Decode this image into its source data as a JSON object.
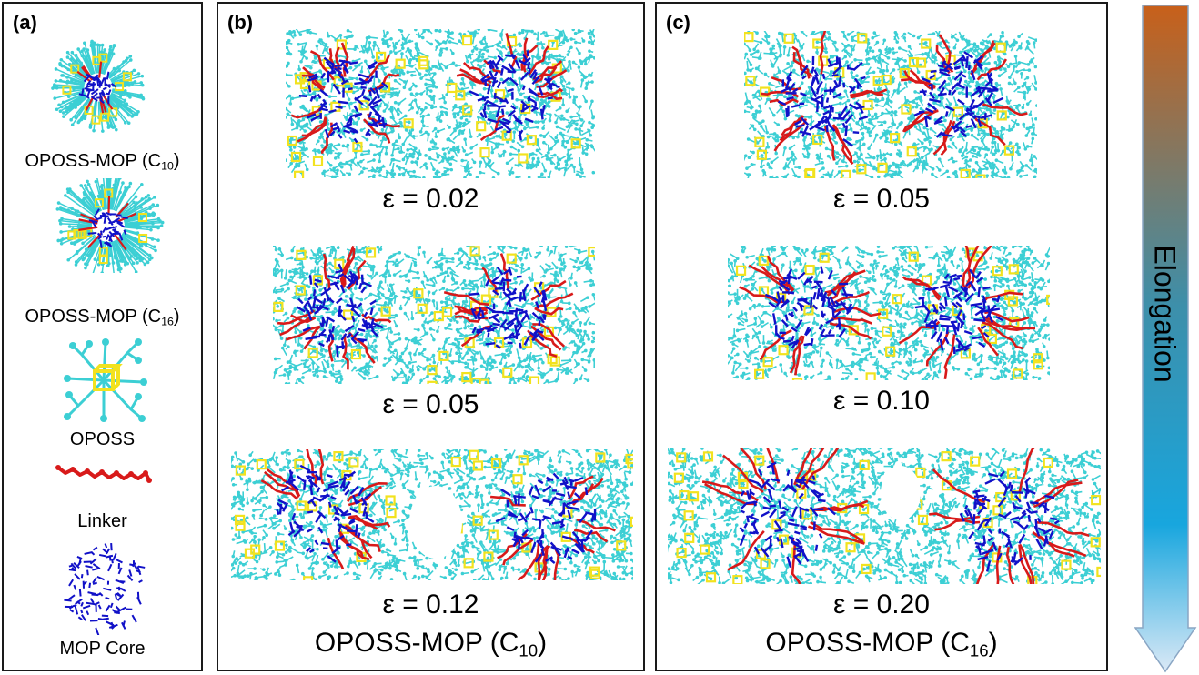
{
  "colors": {
    "oposs_arm": "#3ccfd4",
    "oposs_cage": "#f2e21e",
    "linker": "#d81a1a",
    "mop_core": "#1111c8",
    "arrow_top": "#c8601a",
    "arrow_mid": "#18a6de",
    "arrow_bottom": "#dbe9f6"
  },
  "panel_a": {
    "label": "(a)",
    "items": [
      {
        "text": "OPOSS-MOP (C",
        "sub": "10",
        "close": ")",
        "icon": "oposs-mop-c10-icon"
      },
      {
        "text": "OPOSS-MOP (C",
        "sub": "16",
        "close": ")",
        "icon": "oposs-mop-c16-icon"
      },
      {
        "text": "OPOSS",
        "icon": "oposs-molecule-icon"
      },
      {
        "text": "Linker",
        "icon": "linker-chain-icon"
      },
      {
        "text": "MOP Core",
        "icon": "mop-core-icon"
      }
    ]
  },
  "panel_b": {
    "label": "(b)",
    "strains": [
      "ε = 0.02",
      "ε = 0.05",
      "ε = 0.12"
    ],
    "title": {
      "text": "OPOSS-MOP (C",
      "sub": "10",
      "close": ")"
    }
  },
  "panel_c": {
    "label": "(c)",
    "strains": [
      "ε = 0.05",
      "ε = 0.10",
      "ε = 0.20"
    ],
    "title": {
      "text": "OPOSS-MOP (C",
      "sub": "16",
      "close": ")"
    }
  },
  "arrow": {
    "label": "Elongation"
  }
}
